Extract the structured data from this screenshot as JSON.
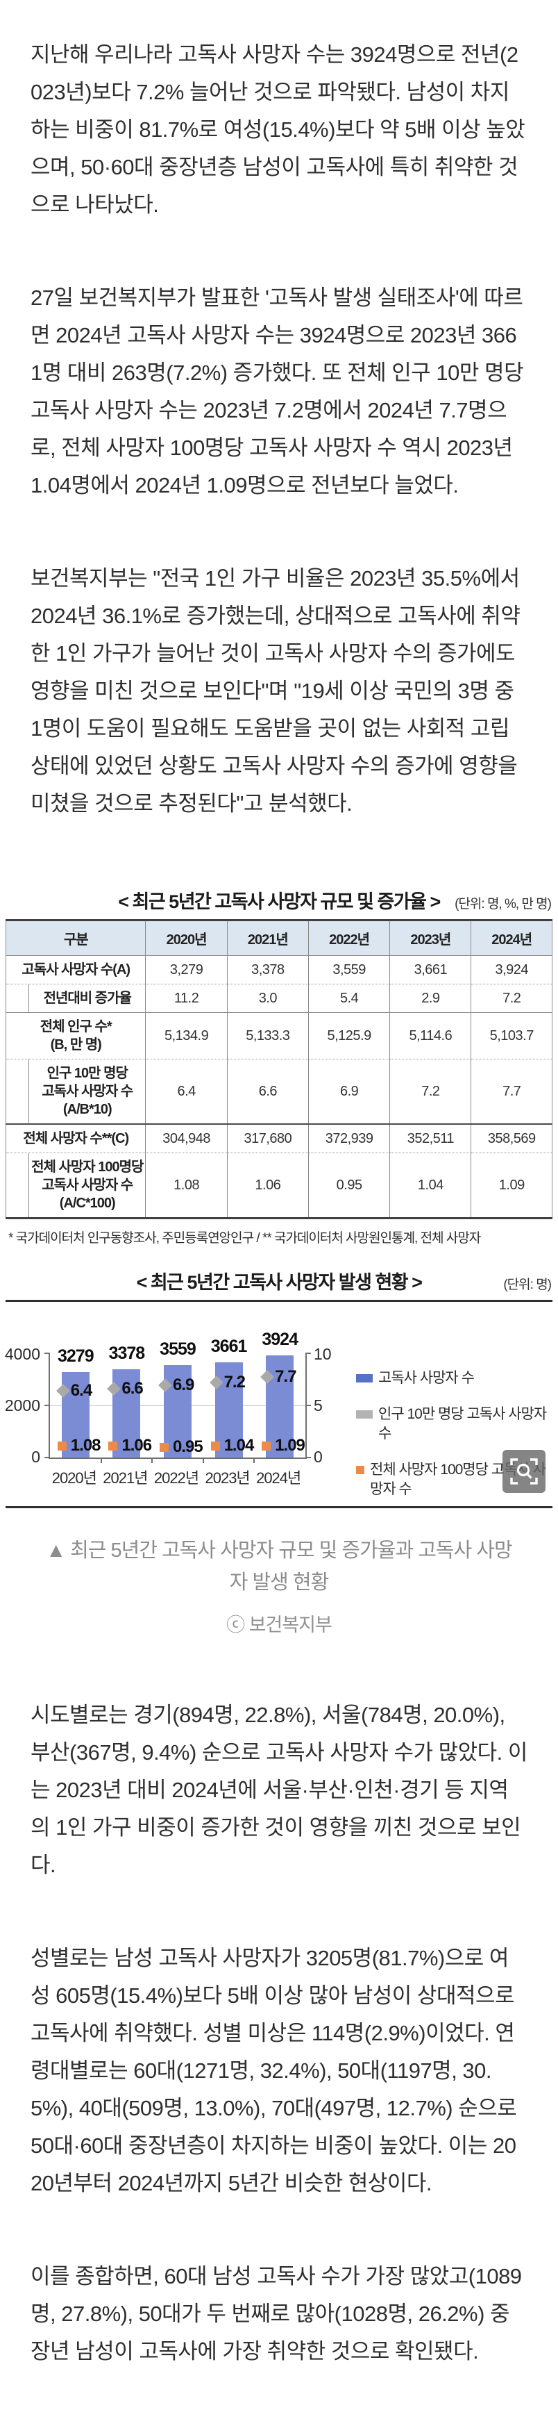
{
  "article": {
    "paragraphs": [
      "지난해 우리나라 고독사 사망자 수는 3924명으로 전년(2023년)보다 7.2% 늘어난 것으로 파악됐다. 남성이 차지하는 비중이 81.7%로 여성(15.4%)보다 약 5배 이상 높았으며, 50·60대 중장년층 남성이 고독사에 특히 취약한 것으로 나타났다.",
      "27일 보건복지부가 발표한 '고독사 발생 실태조사'에 따르면 2024년 고독사 사망자 수는 3924명으로 2023년 3661명 대비 263명(7.2%) 증가했다. 또 전체 인구 10만 명당 고독사 사망자 수는 2023년 7.2명에서 2024년 7.7명으로, 전체 사망자 100명당 고독사 사망자 수 역시 2023년 1.04명에서 2024년 1.09명으로 전년보다 늘었다.",
      "보건복지부는 \"전국 1인 가구 비율은 2023년 35.5%에서 2024년 36.1%로 증가했는데, 상대적으로 고독사에 취약한 1인 가구가 늘어난 것이 고독사 사망자 수의 증가에도 영향을 미친 것으로 보인다\"며 \"19세 이상 국민의 3명 중 1명이 도움이 필요해도 도움받을 곳이 없는 사회적 고립 상태에 있었던 상황도 고독사 사망자 수의 증가에 영향을 미쳤을 것으로 추정된다\"고 분석했다.",
      "시도별로는 경기(894명, 22.8%), 서울(784명, 20.0%), 부산(367명, 9.4%) 순으로 고독사 사망자 수가 많았다. 이는 2023년 대비 2024년에 서울·부산·인천·경기 등 지역의 1인 가구 비중이 증가한 것이 영향을 끼친 것으로 보인다.",
      "성별로는 남성 고독사 사망자가 3205명(81.7%)으로 여성 605명(15.4%)보다 5배 이상 많아 남성이 상대적으로 고독사에 취약했다. 성별 미상은 114명(2.9%)이었다. 연령대별로는 60대(1271명, 32.4%), 50대(1197명, 30.5%), 40대(509명, 13.0%), 70대(497명, 12.7%) 순으로 50대·60대 중장년층이 차지하는 비중이 높았다. 이는 2020년부터 2024년까지 5년간 비슷한 현상이다.",
      "이를 종합하면, 60대 남성 고독사 수가 가장 많았고(1089명, 27.8%), 50대가 두 번째로 많아(1028명, 26.2%) 중장년 남성이 고독사에 가장 취약한 것으로 확인됐다."
    ]
  },
  "caption": {
    "text": "▲ 최근 5년간 고독사 사망자 규모 및 증가율과 고독사 사망자 발생 현황",
    "credit": "ⓒ 보건복지부"
  },
  "colors": {
    "bar_blue": "#7b8cd4",
    "legend_blue": "#5572c5",
    "marker_gray": "#a9a9a9",
    "marker_orange": "#ed8b45",
    "table_header_bg": "#dce6f1"
  },
  "icons": {
    "zoom_button": "magnifier"
  },
  "chart_data": [
    {
      "type": "bar",
      "title": "< 최근 5년간 고독사 사망자 발생 현황 >",
      "unit_note": "(단위: 명)",
      "categories": [
        "2020년",
        "2021년",
        "2022년",
        "2023년",
        "2024년"
      ],
      "series": [
        {
          "name": "고독사 사망자 수",
          "kind": "bar",
          "axis": "left",
          "color": "#7b8cd4",
          "values": [
            3279,
            3378,
            3559,
            3661,
            3924
          ]
        },
        {
          "name": "인구 10만 명당 고독사 사망자 수",
          "kind": "point-diamond",
          "axis": "right",
          "color": "#a9a9a9",
          "values": [
            6.4,
            6.6,
            6.9,
            7.2,
            7.7
          ]
        },
        {
          "name": "전체 사망자 100명당 고독사 사망자 수",
          "kind": "point-square",
          "axis": "right",
          "color": "#ed8b45",
          "values": [
            1.08,
            1.06,
            0.95,
            1.04,
            1.09
          ]
        }
      ],
      "left_axis": {
        "min": 0,
        "max": 4000,
        "ticks": [
          0,
          2000,
          4000
        ],
        "tick_labels": [
          "4000",
          "2000",
          "0"
        ]
      },
      "right_axis": {
        "min": 0,
        "max": 10,
        "ticks": [
          0,
          5,
          10
        ],
        "tick_labels": [
          "10",
          "5",
          "0"
        ]
      },
      "legend_position": "right",
      "grid": "horizontal-midline-only"
    },
    {
      "type": "table",
      "title": "< 최근 5년간 고독사 사망자 규모 및 증가율 >",
      "unit_note": "(단위: 명, %, 만 명)",
      "columns": [
        "구분",
        "2020년",
        "2021년",
        "2022년",
        "2023년",
        "2024년"
      ],
      "rows": [
        {
          "label": "고독사 사망자 수(A)",
          "indent": false,
          "values": [
            "3,279",
            "3,378",
            "3,559",
            "3,661",
            "3,924"
          ]
        },
        {
          "label": "전년대비 증가율",
          "indent": true,
          "values": [
            "11.2",
            "3.0",
            "5.4",
            "2.9",
            "7.2"
          ]
        },
        {
          "label": "전체 인구 수*\n(B, 만 명)",
          "indent": false,
          "values": [
            "5,134.9",
            "5,133.3",
            "5,125.9",
            "5,114.6",
            "5,103.7"
          ]
        },
        {
          "label": "인구 10만 명당\n고독사 사망자 수\n(A/B*10)",
          "indent": true,
          "values": [
            "6.4",
            "6.6",
            "6.9",
            "7.2",
            "7.7"
          ]
        },
        {
          "label": "전체 사망자 수**(C)",
          "indent": false,
          "values": [
            "304,948",
            "317,680",
            "372,939",
            "352,511",
            "358,569"
          ]
        },
        {
          "label": "전체 사망자 100명당\n고독사 사망자 수\n(A/C*100)",
          "indent": true,
          "values": [
            "1.08",
            "1.06",
            "0.95",
            "1.04",
            "1.09"
          ]
        }
      ],
      "footnote": "* 국가데이터처 인구동향조사, 주민등록연앙인구  /  ** 국가데이터처 사망원인통계, 전체 사망자"
    }
  ]
}
